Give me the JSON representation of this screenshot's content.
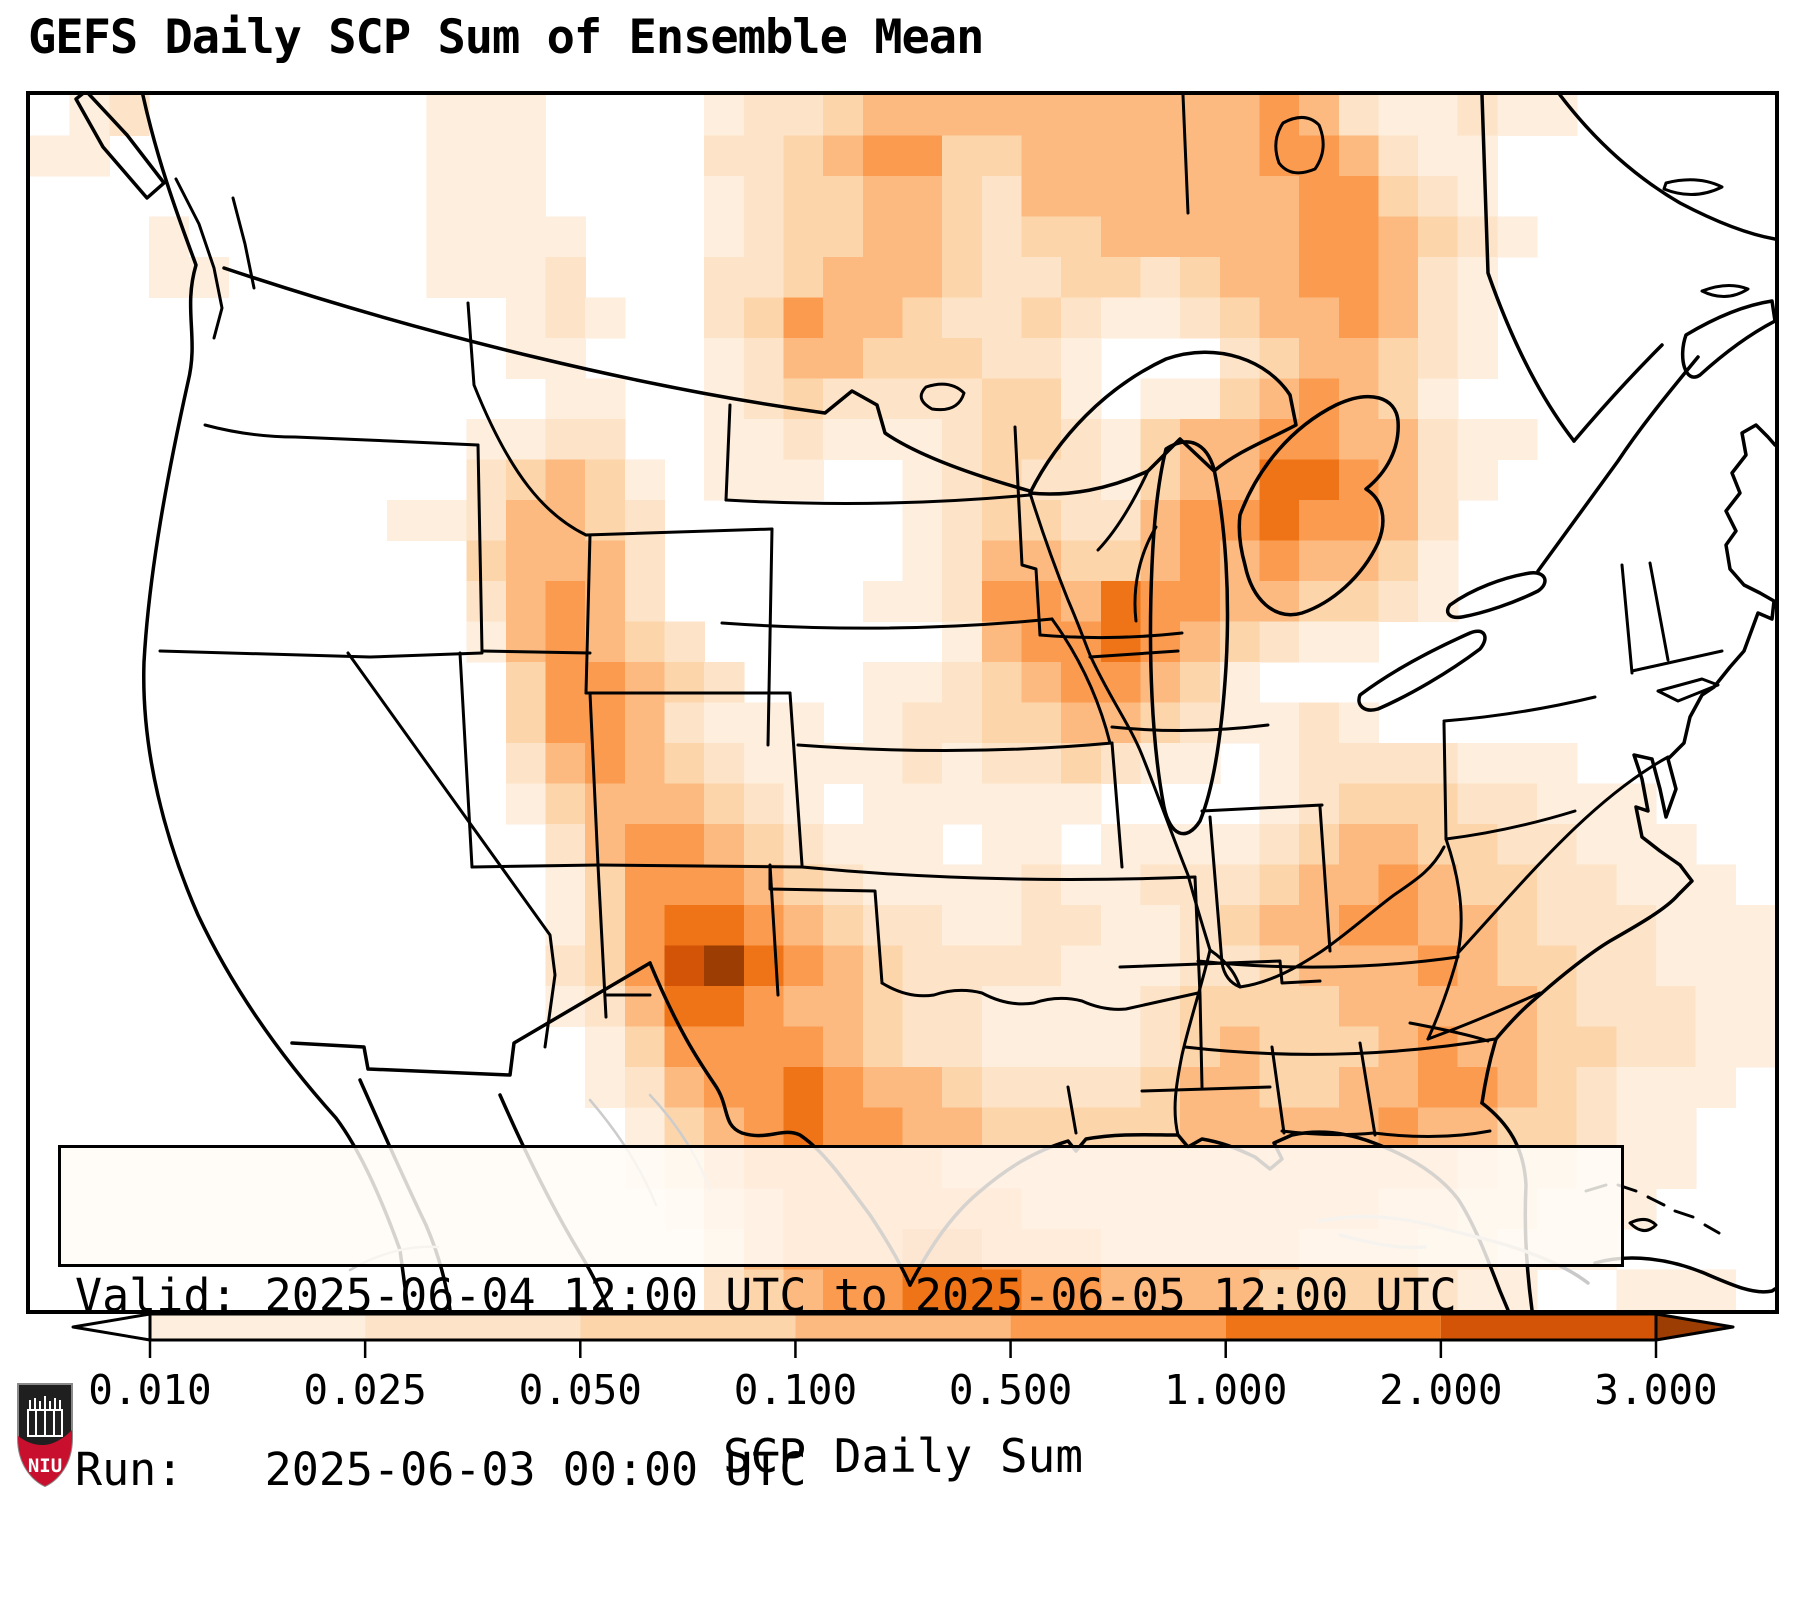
{
  "title": "GEFS Daily SCP Sum of Ensemble Mean",
  "info": {
    "valid_line": "Valid: 2025-06-04 12:00 UTC to 2025-06-05 12:00 UTC",
    "run_line": "Run:   2025-06-03 00:00 UTC"
  },
  "colorbar": {
    "label": "SCP Daily Sum",
    "tick_labels": [
      "0.010",
      "0.025",
      "0.050",
      "0.100",
      "0.500",
      "1.000",
      "2.000",
      "3.000"
    ],
    "boundaries": [
      0.01,
      0.025,
      0.05,
      0.1,
      0.5,
      1.0,
      2.0,
      3.0
    ],
    "segment_colors": [
      "#fdeedd",
      "#fde3c8",
      "#fdd5ab",
      "#fcba80",
      "#fb9b4f",
      "#ee7417",
      "#d35407"
    ],
    "under_color": "#ffffff",
    "over_color": "#9c3d03",
    "extend": "both",
    "outline_color": "#000000"
  },
  "logo": {
    "text": "NIU",
    "shield_dark": "#1f1f1f",
    "band_red": "#c8102e",
    "castle_color": "#ffffff"
  },
  "map": {
    "background": "#ffffff",
    "border_color": "#000000",
    "coast_color": "#000000",
    "faded_coast_color": "#c9c9c9",
    "grid": {
      "cols": 44,
      "rows": 30,
      "palette": [
        "none",
        "#fdeedd",
        "#fde3c8",
        "#fdd5ab",
        "#fcba80",
        "#fb9b4f",
        "#ee7417",
        "#d35407",
        "#9c3d03"
      ],
      "rows_data": [
        "01200000001110000122344444444445421121100000",
        "11000000001110000223455334444445542110000000",
        "00000000001110000123344324444444553210000000",
        "00010000001111000123344323344444554321000000",
        "00011000001112000223444322332344554210000000",
        "00000000000012100235443223211234454210000000",
        "00000000000011000124433322100023443210000000",
        "00000000000001100123222233101134543100000000",
        "00000000000112200112111233213445544211000000",
        "00000000000234310111001232213446654210000000",
        "00000000011244320000001233224556554200000000",
        "00000000000344420000001244334545443100000000",
        "00000000000245420000011255465544332100000000",
        "00000000000145432000000145565432110000000000",
        "00000000000035543200011234554310000000000000",
        "00000000000035542111012233443211210000000000",
        "00000000000024543211112122321101222211100000",
        "00000000000013444321011111100001233322111000",
        "00000000000002455432111011011112344332211100",
        "00000000000001355543211112112223445433221110",
        "00000000000001356654322112211234455443222111",
        "00000000000002357865432222111223444543322111",
        "00000000000001246654432211112333344444322211",
        "00000000000000135555432211112343334544332211",
        "00000000000000124556544322223443344554321110",
        "00000000000000013456554433333444445443321100",
        "00000000000000012455555444444444444432211100",
        "00000000000000001345555554444444443322111000",
        "00000000000000000245556655544444333221110000",
        "00000000000000000234556665544443333211001110"
      ]
    }
  }
}
